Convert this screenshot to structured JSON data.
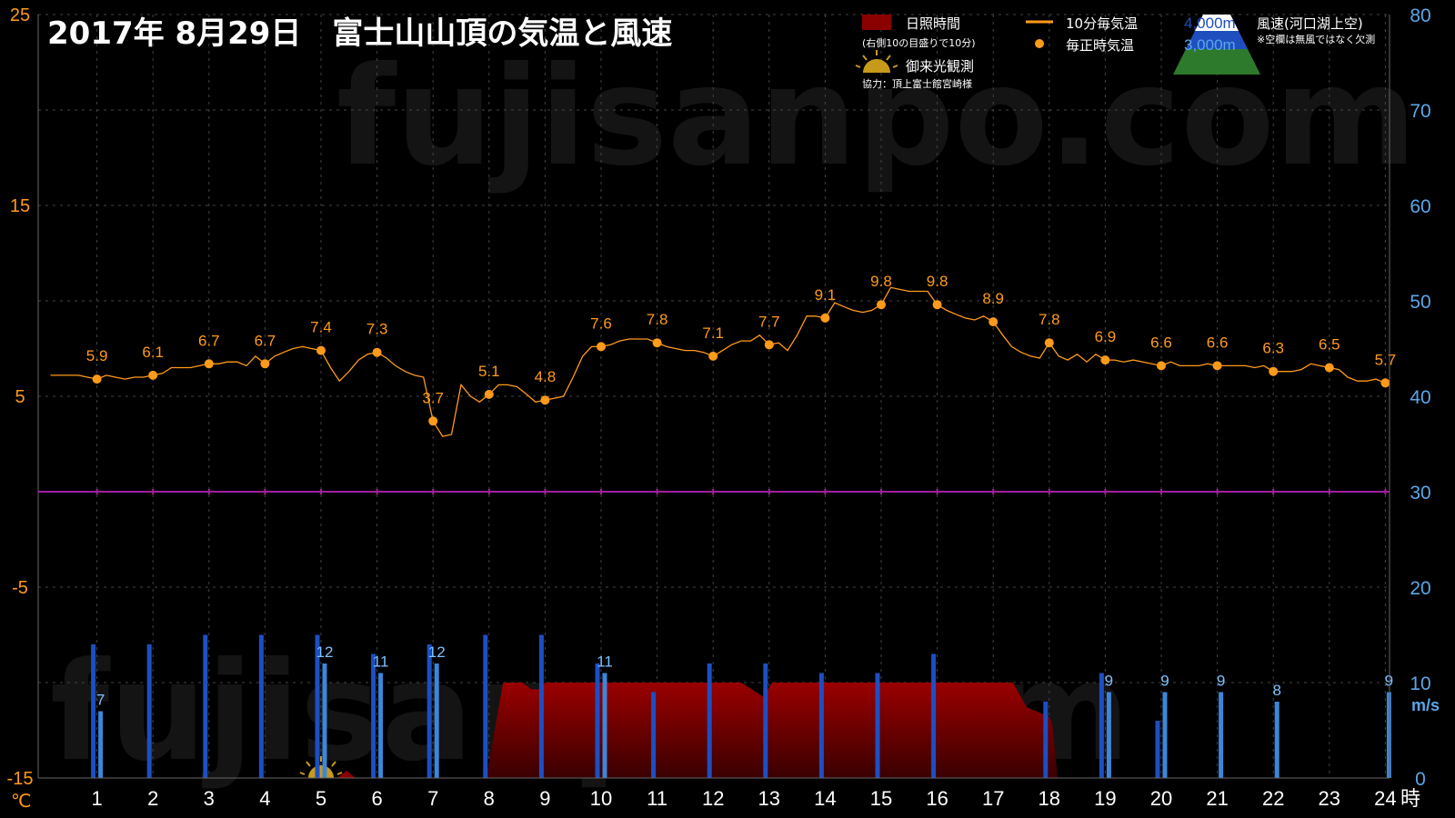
{
  "title": "2017年 8月29日　富士山山頂の気温と風速",
  "watermark": "fujisanpo.com",
  "legend": {
    "sunshine": "日照時間",
    "sunshine_note": "(右側10の目盛りで10分)",
    "temp_line": "10分毎気温",
    "temp_point": "毎正時気温",
    "sunrise": "御来光観測",
    "credit": "協力：頂上富士館宮崎様",
    "alt_4000": "4,000m",
    "alt_3000": "3,000m",
    "wind_title": "風速(河口湖上空)",
    "wind_note": "※空欄は無風ではなく欠測"
  },
  "colors": {
    "temperature": "#ff9a1a",
    "wind_4000": "#1c4fc4",
    "wind_3000": "#3d86d9",
    "sunshine": "#8b0000",
    "zero_line": "#a020a0",
    "right_axis": "#5aa6e8"
  },
  "chart_data": {
    "type": "line",
    "x_unit": "時",
    "y_left_unit": "℃",
    "y_right_unit": "m/s",
    "y_left_range": [
      -15,
      25
    ],
    "y_left_ticks": [
      -15,
      -5,
      5,
      15,
      25
    ],
    "y_right_range": [
      0,
      80
    ],
    "y_right_ticks": [
      0,
      10,
      20,
      30,
      40,
      50,
      60,
      70,
      80
    ],
    "x_ticks": [
      1,
      2,
      3,
      4,
      5,
      6,
      7,
      8,
      9,
      10,
      11,
      12,
      13,
      14,
      15,
      16,
      17,
      18,
      19,
      20,
      21,
      22,
      23,
      24
    ],
    "hourly_temp": [
      {
        "hour": 1,
        "value": 5.9,
        "label": "5.9"
      },
      {
        "hour": 2,
        "value": 6.1,
        "label": "6.1"
      },
      {
        "hour": 3,
        "value": 6.7,
        "label": "6.7"
      },
      {
        "hour": 4,
        "value": 6.7,
        "label": "6.7"
      },
      {
        "hour": 5,
        "value": 7.4,
        "label": "7.4"
      },
      {
        "hour": 6,
        "value": 7.3,
        "label": "7.3"
      },
      {
        "hour": 7,
        "value": 3.7,
        "label": "3.7"
      },
      {
        "hour": 8,
        "value": 5.1,
        "label": "5.1"
      },
      {
        "hour": 9,
        "value": 4.8,
        "label": "4.8"
      },
      {
        "hour": 10,
        "value": 7.6,
        "label": "7.6"
      },
      {
        "hour": 11,
        "value": 7.8,
        "label": "7.8"
      },
      {
        "hour": 12,
        "value": 7.1,
        "label": "7.1"
      },
      {
        "hour": 13,
        "value": 7.7,
        "label": "7.7"
      },
      {
        "hour": 14,
        "value": 9.1,
        "label": "9.1"
      },
      {
        "hour": 15,
        "value": 9.8,
        "label": "9.8"
      },
      {
        "hour": 16,
        "value": 9.8,
        "label": "9.8"
      },
      {
        "hour": 17,
        "value": 8.9,
        "label": "8.9"
      },
      {
        "hour": 18,
        "value": 7.8,
        "label": "7.8"
      },
      {
        "hour": 19,
        "value": 6.9,
        "label": "6.9"
      },
      {
        "hour": 20,
        "value": 6.6,
        "label": "6.6"
      },
      {
        "hour": 21,
        "value": 6.6,
        "label": "6.6"
      },
      {
        "hour": 22,
        "value": 6.3,
        "label": "6.3"
      },
      {
        "hour": 23,
        "value": 6.5,
        "label": "6.5"
      },
      {
        "hour": 24,
        "value": 5.7,
        "label": "5.7"
      }
    ],
    "temp_10min": [
      [
        0.17,
        6.1
      ],
      [
        0.33,
        6.1
      ],
      [
        0.5,
        6.1
      ],
      [
        0.67,
        6.1
      ],
      [
        0.83,
        6.0
      ],
      [
        1.0,
        5.9
      ],
      [
        1.17,
        6.1
      ],
      [
        1.33,
        6.0
      ],
      [
        1.5,
        5.9
      ],
      [
        1.67,
        6.0
      ],
      [
        1.83,
        6.0
      ],
      [
        2.0,
        6.1
      ],
      [
        2.17,
        6.2
      ],
      [
        2.33,
        6.5
      ],
      [
        2.5,
        6.5
      ],
      [
        2.67,
        6.5
      ],
      [
        2.83,
        6.6
      ],
      [
        3.0,
        6.7
      ],
      [
        3.17,
        6.7
      ],
      [
        3.33,
        6.8
      ],
      [
        3.5,
        6.8
      ],
      [
        3.67,
        6.6
      ],
      [
        3.83,
        7.1
      ],
      [
        4.0,
        6.7
      ],
      [
        4.17,
        7.1
      ],
      [
        4.33,
        7.3
      ],
      [
        4.5,
        7.5
      ],
      [
        4.67,
        7.6
      ],
      [
        4.83,
        7.5
      ],
      [
        5.0,
        7.4
      ],
      [
        5.17,
        6.5
      ],
      [
        5.33,
        5.8
      ],
      [
        5.5,
        6.3
      ],
      [
        5.67,
        6.9
      ],
      [
        5.83,
        7.2
      ],
      [
        6.0,
        7.3
      ],
      [
        6.17,
        7.0
      ],
      [
        6.33,
        6.6
      ],
      [
        6.5,
        6.3
      ],
      [
        6.67,
        6.1
      ],
      [
        6.83,
        6.0
      ],
      [
        7.0,
        3.7
      ],
      [
        7.17,
        2.9
      ],
      [
        7.33,
        3.0
      ],
      [
        7.5,
        5.6
      ],
      [
        7.67,
        5.0
      ],
      [
        7.83,
        4.7
      ],
      [
        8.0,
        5.1
      ],
      [
        8.17,
        5.6
      ],
      [
        8.33,
        5.6
      ],
      [
        8.5,
        5.5
      ],
      [
        8.67,
        5.1
      ],
      [
        8.83,
        4.7
      ],
      [
        9.0,
        4.8
      ],
      [
        9.17,
        4.9
      ],
      [
        9.33,
        5.0
      ],
      [
        9.5,
        6.0
      ],
      [
        9.67,
        7.1
      ],
      [
        9.83,
        7.6
      ],
      [
        10.0,
        7.6
      ],
      [
        10.17,
        7.7
      ],
      [
        10.33,
        7.9
      ],
      [
        10.5,
        8.0
      ],
      [
        10.67,
        8.0
      ],
      [
        10.83,
        8.0
      ],
      [
        11.0,
        7.8
      ],
      [
        11.17,
        7.6
      ],
      [
        11.33,
        7.5
      ],
      [
        11.5,
        7.4
      ],
      [
        11.67,
        7.4
      ],
      [
        11.83,
        7.3
      ],
      [
        12.0,
        7.1
      ],
      [
        12.17,
        7.4
      ],
      [
        12.33,
        7.7
      ],
      [
        12.5,
        7.9
      ],
      [
        12.67,
        7.9
      ],
      [
        12.83,
        8.2
      ],
      [
        13.0,
        7.7
      ],
      [
        13.17,
        7.8
      ],
      [
        13.33,
        7.4
      ],
      [
        13.5,
        8.2
      ],
      [
        13.67,
        9.2
      ],
      [
        13.83,
        9.2
      ],
      [
        14.0,
        9.1
      ],
      [
        14.17,
        9.9
      ],
      [
        14.33,
        9.7
      ],
      [
        14.5,
        9.5
      ],
      [
        14.67,
        9.4
      ],
      [
        14.83,
        9.5
      ],
      [
        15.0,
        9.8
      ],
      [
        15.17,
        10.7
      ],
      [
        15.33,
        10.6
      ],
      [
        15.5,
        10.5
      ],
      [
        15.67,
        10.5
      ],
      [
        15.83,
        10.5
      ],
      [
        16.0,
        9.8
      ],
      [
        16.17,
        9.5
      ],
      [
        16.33,
        9.3
      ],
      [
        16.5,
        9.1
      ],
      [
        16.67,
        9.0
      ],
      [
        16.83,
        9.2
      ],
      [
        17.0,
        8.9
      ],
      [
        17.17,
        8.2
      ],
      [
        17.33,
        7.6
      ],
      [
        17.5,
        7.3
      ],
      [
        17.67,
        7.1
      ],
      [
        17.83,
        7.0
      ],
      [
        18.0,
        7.8
      ],
      [
        18.17,
        7.1
      ],
      [
        18.33,
        6.9
      ],
      [
        18.5,
        7.2
      ],
      [
        18.67,
        6.8
      ],
      [
        18.83,
        7.2
      ],
      [
        19.0,
        6.9
      ],
      [
        19.17,
        6.9
      ],
      [
        19.33,
        6.8
      ],
      [
        19.5,
        6.9
      ],
      [
        19.67,
        6.8
      ],
      [
        19.83,
        6.7
      ],
      [
        20.0,
        6.6
      ],
      [
        20.17,
        6.8
      ],
      [
        20.33,
        6.6
      ],
      [
        20.5,
        6.6
      ],
      [
        20.67,
        6.6
      ],
      [
        20.83,
        6.7
      ],
      [
        21.0,
        6.6
      ],
      [
        21.17,
        6.6
      ],
      [
        21.33,
        6.6
      ],
      [
        21.5,
        6.6
      ],
      [
        21.67,
        6.5
      ],
      [
        21.83,
        6.6
      ],
      [
        22.0,
        6.3
      ],
      [
        22.17,
        6.3
      ],
      [
        22.33,
        6.3
      ],
      [
        22.5,
        6.4
      ],
      [
        22.67,
        6.7
      ],
      [
        22.83,
        6.6
      ],
      [
        23.0,
        6.5
      ],
      [
        23.17,
        6.4
      ],
      [
        23.33,
        6.0
      ],
      [
        23.5,
        5.8
      ],
      [
        23.67,
        5.8
      ],
      [
        23.83,
        5.9
      ],
      [
        24.0,
        5.7
      ]
    ],
    "wind_4000": [
      {
        "hour": 1,
        "value": 14
      },
      {
        "hour": 2,
        "value": 14
      },
      {
        "hour": 3,
        "value": 15
      },
      {
        "hour": 4,
        "value": 15
      },
      {
        "hour": 5,
        "value": 15
      },
      {
        "hour": 6,
        "value": 13
      },
      {
        "hour": 7,
        "value": 14
      },
      {
        "hour": 8,
        "value": 15
      },
      {
        "hour": 9,
        "value": 15
      },
      {
        "hour": 10,
        "value": 12
      },
      {
        "hour": 11,
        "value": 9
      },
      {
        "hour": 12,
        "value": 12
      },
      {
        "hour": 13,
        "value": 12
      },
      {
        "hour": 14,
        "value": 11
      },
      {
        "hour": 15,
        "value": 11
      },
      {
        "hour": 16,
        "value": 13
      },
      {
        "hour": 18,
        "value": 8
      },
      {
        "hour": 19,
        "value": 11
      },
      {
        "hour": 20,
        "value": 6
      }
    ],
    "wind_3000": [
      {
        "hour": 1,
        "value": 7,
        "label": "7"
      },
      {
        "hour": 5,
        "value": 12,
        "label": "12"
      },
      {
        "hour": 6,
        "value": 11,
        "label": "11"
      },
      {
        "hour": 7,
        "value": 12,
        "label": "12"
      },
      {
        "hour": 10,
        "value": 11,
        "label": "11"
      },
      {
        "hour": 19,
        "value": 9,
        "label": "9"
      },
      {
        "hour": 20,
        "value": 9,
        "label": "9"
      },
      {
        "hour": 21,
        "value": 9,
        "label": "9"
      },
      {
        "hour": 22,
        "value": 8,
        "label": "8"
      },
      {
        "hour": 24,
        "value": 9,
        "label": "9"
      }
    ],
    "sunshine_minutes": [
      [
        7.95,
        0
      ],
      [
        8.25,
        10
      ],
      [
        8.6,
        10
      ],
      [
        8.75,
        9.3
      ],
      [
        8.9,
        9.3
      ],
      [
        9.0,
        10
      ],
      [
        12.5,
        10
      ],
      [
        12.9,
        8.5
      ],
      [
        13.05,
        10
      ],
      [
        17.35,
        10
      ],
      [
        17.6,
        7.4
      ],
      [
        17.8,
        6.9
      ],
      [
        18.0,
        6.4
      ],
      [
        18.05,
        5.8
      ],
      [
        18.15,
        0
      ]
    ],
    "sunrise_hour": 5
  }
}
